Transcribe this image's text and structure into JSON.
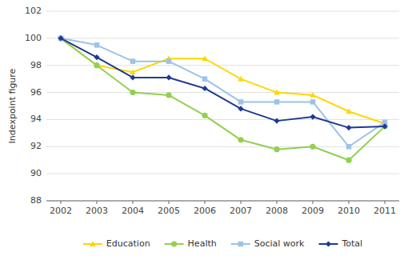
{
  "chart_data": {
    "type": "line",
    "ylabel": "Indexpoint figure",
    "x": [
      2002,
      2003,
      2004,
      2005,
      2006,
      2007,
      2008,
      2009,
      2010,
      2011
    ],
    "xlim": [
      2001.6,
      2011.4
    ],
    "xticks": [
      2002,
      2003,
      2004,
      2005,
      2006,
      2007,
      2008,
      2009,
      2010,
      2011
    ],
    "ylim": [
      88,
      102
    ],
    "yticks": [
      88,
      90,
      92,
      94,
      96,
      98,
      100,
      102
    ],
    "grid": true,
    "legend": "bottom",
    "series": [
      {
        "name": "Education",
        "color": "#FFD700",
        "marker": "triangle",
        "values": [
          100.0,
          98.0,
          97.5,
          98.5,
          98.5,
          97.0,
          96.0,
          95.8,
          94.6,
          93.7
        ]
      },
      {
        "name": "Health",
        "color": "#92D050",
        "marker": "circle",
        "values": [
          100.0,
          98.0,
          96.0,
          95.8,
          94.3,
          92.5,
          91.8,
          92.0,
          91.0,
          93.5
        ]
      },
      {
        "name": "Social work",
        "color": "#9DC3E6",
        "marker": "square",
        "values": [
          100.0,
          99.5,
          98.3,
          98.3,
          97.0,
          95.3,
          95.3,
          95.3,
          92.0,
          93.8
        ]
      },
      {
        "name": "Total",
        "color": "#1F3A93",
        "marker": "diamond",
        "values": [
          100.0,
          98.6,
          97.1,
          97.1,
          96.3,
          94.8,
          93.9,
          94.2,
          93.4,
          93.5
        ]
      }
    ]
  }
}
